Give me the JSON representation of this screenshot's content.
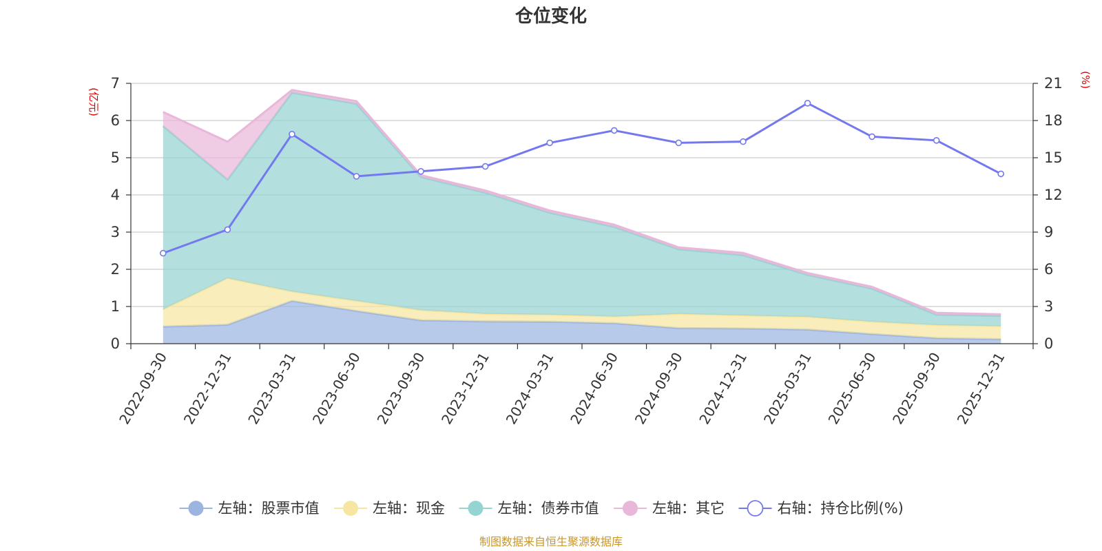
{
  "chart_data": {
    "type": "area",
    "title": "仓位变化",
    "left_unit": "(亿元)",
    "right_unit": "(%)",
    "ylim_left": [
      0,
      7
    ],
    "yticks_left": [
      "0",
      "1",
      "2",
      "3",
      "4",
      "5",
      "6",
      "7"
    ],
    "ylim_right": [
      0,
      21
    ],
    "yticks_right": [
      "0",
      "3",
      "6",
      "9",
      "12",
      "15",
      "18",
      "21"
    ],
    "categories": [
      "2022-09-30",
      "2022-12-31",
      "2023-03-31",
      "2023-06-30",
      "2023-09-30",
      "2023-12-31",
      "2024-03-31",
      "2024-06-30",
      "2024-09-30",
      "2024-12-31",
      "2025-03-31",
      "2025-06-30",
      "2025-09-30",
      "2025-12-31"
    ],
    "stacked_series": [
      {
        "name": "左轴：股票市值",
        "color": "#9bb5e0",
        "values": [
          0.46,
          0.51,
          1.15,
          0.88,
          0.63,
          0.6,
          0.59,
          0.55,
          0.42,
          0.41,
          0.38,
          0.26,
          0.15,
          0.12
        ]
      },
      {
        "name": "左轴：现金",
        "color": "#f7e6a2",
        "values": [
          0.46,
          1.25,
          0.25,
          0.27,
          0.27,
          0.2,
          0.19,
          0.18,
          0.38,
          0.35,
          0.34,
          0.33,
          0.35,
          0.35
        ]
      },
      {
        "name": "左轴：债券市值",
        "color": "#96d3d3",
        "values": [
          4.93,
          2.65,
          5.35,
          5.3,
          3.58,
          3.26,
          2.74,
          2.41,
          1.74,
          1.62,
          1.13,
          0.89,
          0.28,
          0.28
        ]
      },
      {
        "name": "左轴：其它",
        "color": "#e9b7d9",
        "values": [
          0.38,
          1.02,
          0.07,
          0.07,
          0.05,
          0.06,
          0.06,
          0.06,
          0.05,
          0.06,
          0.05,
          0.05,
          0.05,
          0.04
        ]
      }
    ],
    "line_series": {
      "name": "右轴：持仓比例(%)",
      "color": "#7378ee",
      "values": [
        7.3,
        9.2,
        16.9,
        13.5,
        13.9,
        14.3,
        16.2,
        17.2,
        16.2,
        16.3,
        19.4,
        16.7,
        16.4,
        13.7
      ]
    }
  },
  "source_text": "制图数据来自恒生聚源数据库"
}
